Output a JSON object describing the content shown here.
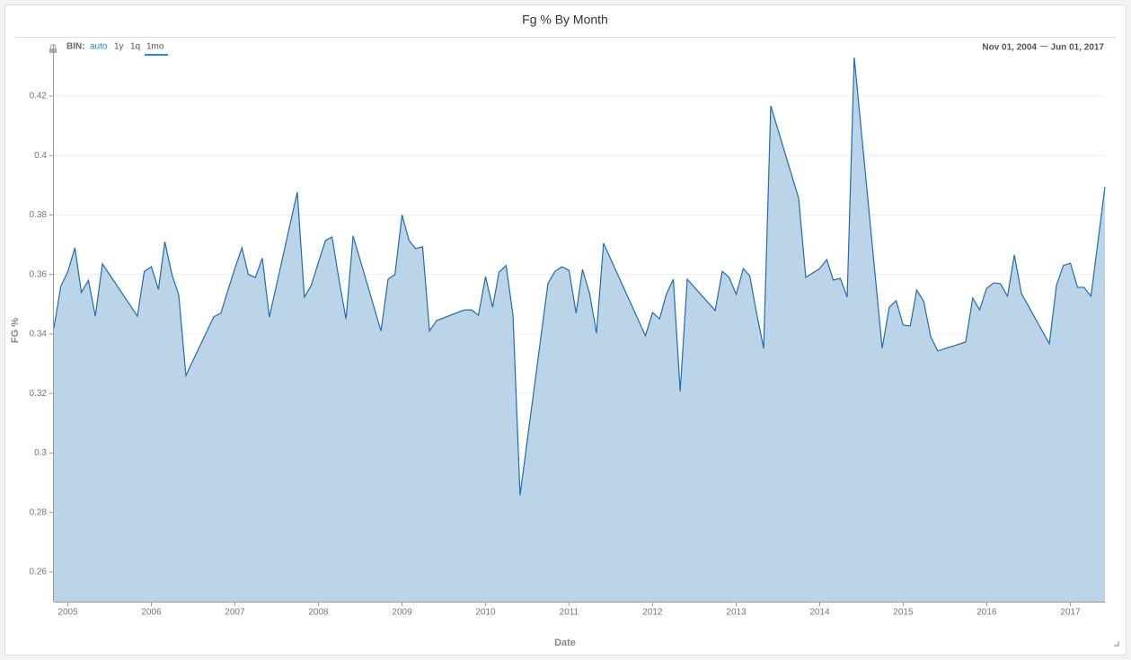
{
  "chart_data": {
    "type": "area",
    "title": "Fg % By Month",
    "x_label": "Date",
    "y_label": "FG %",
    "x": [
      "2004-11-01",
      "2004-12-01",
      "2005-01-01",
      "2005-02-01",
      "2005-03-01",
      "2005-04-01",
      "2005-05-01",
      "2005-06-01",
      "2005-11-01",
      "2005-12-01",
      "2006-01-01",
      "2006-02-01",
      "2006-03-01",
      "2006-04-01",
      "2006-05-01",
      "2006-06-01",
      "2006-10-01",
      "2006-11-01",
      "2006-12-01",
      "2007-01-01",
      "2007-02-01",
      "2007-03-01",
      "2007-04-01",
      "2007-05-01",
      "2007-06-01",
      "2007-10-01",
      "2007-11-01",
      "2007-12-01",
      "2008-01-01",
      "2008-02-01",
      "2008-03-01",
      "2008-04-01",
      "2008-05-01",
      "2008-06-01",
      "2008-10-01",
      "2008-11-01",
      "2008-12-01",
      "2009-01-01",
      "2009-02-01",
      "2009-03-01",
      "2009-04-01",
      "2009-05-01",
      "2009-06-01",
      "2009-10-01",
      "2009-11-01",
      "2009-12-01",
      "2010-01-01",
      "2010-02-01",
      "2010-03-01",
      "2010-04-01",
      "2010-05-01",
      "2010-06-01",
      "2010-10-01",
      "2010-11-01",
      "2010-12-01",
      "2011-01-01",
      "2011-02-01",
      "2011-03-01",
      "2011-04-01",
      "2011-05-01",
      "2011-06-01",
      "2011-12-01",
      "2012-01-01",
      "2012-02-01",
      "2012-03-01",
      "2012-04-01",
      "2012-05-01",
      "2012-06-01",
      "2012-10-01",
      "2012-11-01",
      "2012-12-01",
      "2013-01-01",
      "2013-02-01",
      "2013-03-01",
      "2013-04-01",
      "2013-05-01",
      "2013-06-01",
      "2013-10-01",
      "2013-11-01",
      "2013-12-01",
      "2014-01-01",
      "2014-02-01",
      "2014-03-01",
      "2014-04-01",
      "2014-05-01",
      "2014-06-01",
      "2014-10-01",
      "2014-11-01",
      "2014-12-01",
      "2015-01-01",
      "2015-02-01",
      "2015-03-01",
      "2015-04-01",
      "2015-05-01",
      "2015-06-01",
      "2015-10-01",
      "2015-11-01",
      "2015-12-01",
      "2016-01-01",
      "2016-02-01",
      "2016-03-01",
      "2016-04-01",
      "2016-05-01",
      "2016-06-01",
      "2016-10-01",
      "2016-11-01",
      "2016-12-01",
      "2017-01-01",
      "2017-02-01",
      "2017-03-01",
      "2017-04-01",
      "2017-06-01"
    ],
    "values": [
      0.342,
      0.356,
      0.361,
      0.369,
      0.354,
      0.358,
      0.346,
      0.3636,
      0.346,
      0.361,
      0.3626,
      0.355,
      0.371,
      0.36,
      0.353,
      0.326,
      0.3458,
      0.347,
      0.3545,
      0.362,
      0.369,
      0.36,
      0.359,
      0.3655,
      0.3457,
      0.3877,
      0.3524,
      0.3563,
      0.364,
      0.3714,
      0.3726,
      0.358,
      0.345,
      0.373,
      0.341,
      0.3584,
      0.36,
      0.38,
      0.3714,
      0.3687,
      0.3693,
      0.341,
      0.3445,
      0.3481,
      0.3481,
      0.3463,
      0.3593,
      0.349,
      0.3608,
      0.363,
      0.3463,
      0.2858,
      0.357,
      0.3611,
      0.3626,
      0.3614,
      0.347,
      0.3617,
      0.3536,
      0.3403,
      0.3705,
      0.3394,
      0.3472,
      0.3451,
      0.3533,
      0.3584,
      0.3207,
      0.3584,
      0.3479,
      0.3611,
      0.359,
      0.3533,
      0.362,
      0.3596,
      0.3466,
      0.3352,
      0.4167,
      0.3856,
      0.359,
      0.3605,
      0.362,
      0.365,
      0.3581,
      0.3587,
      0.3524,
      0.433,
      0.3352,
      0.349,
      0.3512,
      0.343,
      0.3427,
      0.3548,
      0.3509,
      0.3391,
      0.3343,
      0.3373,
      0.3521,
      0.3481,
      0.3554,
      0.3572,
      0.3569,
      0.3527,
      0.3666,
      0.3536,
      0.3367,
      0.3563,
      0.363,
      0.3638,
      0.3557,
      0.3557,
      0.3527,
      0.3895
    ],
    "color": "#1f6db0",
    "fill_color": "#bcd4e8",
    "xlim": [
      "2004-11-01",
      "2017-06-01"
    ],
    "ylim": [
      0.25,
      0.4375
    ],
    "yticks": [
      0.26,
      0.28,
      0.3,
      0.32,
      0.34,
      0.36,
      0.38,
      0.4,
      0.42
    ],
    "xticks": [
      {
        "value": "2005-01-01",
        "label": "2005"
      },
      {
        "value": "2006-01-01",
        "label": "2006"
      },
      {
        "value": "2007-01-01",
        "label": "2007"
      },
      {
        "value": "2008-01-01",
        "label": "2008"
      },
      {
        "value": "2009-01-01",
        "label": "2009"
      },
      {
        "value": "2010-01-01",
        "label": "2010"
      },
      {
        "value": "2011-01-01",
        "label": "2011"
      },
      {
        "value": "2012-01-01",
        "label": "2012"
      },
      {
        "value": "2013-01-01",
        "label": "2013"
      },
      {
        "value": "2014-01-01",
        "label": "2014"
      },
      {
        "value": "2015-01-01",
        "label": "2015"
      },
      {
        "value": "2016-01-01",
        "label": "2016"
      },
      {
        "value": "2017-01-01",
        "label": "2017"
      }
    ],
    "grid": true
  },
  "ui": {
    "bin_label": "BIN:",
    "bin_options": [
      "auto",
      "1y",
      "1q",
      "1mo"
    ],
    "range_start": "Nov 01, 2004",
    "range_end": "Jun 01, 2017"
  }
}
